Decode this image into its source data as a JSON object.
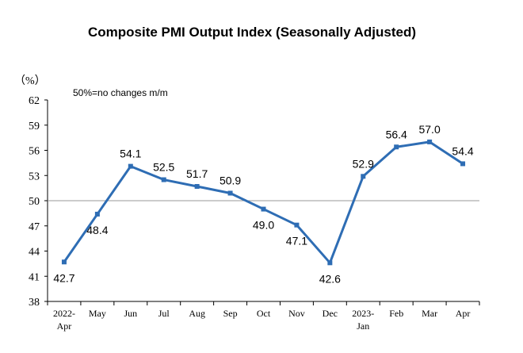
{
  "chart_data": {
    "type": "line",
    "title": "Composite PMI Output Index (Seasonally Adjusted)",
    "unit_label": "（%）",
    "annotation": "50%=no changes m/m",
    "ylim": [
      38,
      62
    ],
    "yticks": [
      38,
      41,
      44,
      47,
      50,
      53,
      56,
      59,
      62
    ],
    "reference_line": 50,
    "grid": false,
    "categories": [
      [
        "2022-",
        "Apr"
      ],
      [
        "May"
      ],
      [
        "Jun"
      ],
      [
        "Jul"
      ],
      [
        "Aug"
      ],
      [
        "Sep"
      ],
      [
        "Oct"
      ],
      [
        "Nov"
      ],
      [
        "Dec"
      ],
      [
        "2023-",
        "Jan"
      ],
      [
        "Feb"
      ],
      [
        "Mar"
      ],
      [
        "Apr"
      ]
    ],
    "series": [
      {
        "values": [
          42.7,
          48.4,
          54.1,
          52.5,
          51.7,
          50.9,
          49.0,
          47.1,
          42.6,
          52.9,
          56.4,
          57.0,
          54.4
        ],
        "labels": [
          "42.7",
          "48.4",
          "54.1",
          "52.5",
          "51.7",
          "50.9",
          "49.0",
          "47.1",
          "42.6",
          "52.9",
          "56.4",
          "57.0",
          "54.4"
        ],
        "color": "#2e6db4"
      }
    ]
  }
}
